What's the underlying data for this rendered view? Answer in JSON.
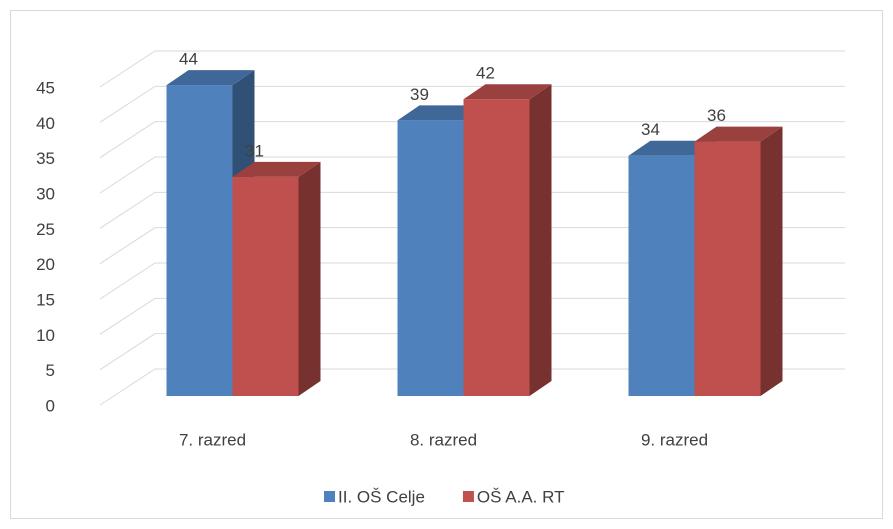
{
  "chart_data": {
    "type": "bar3d",
    "categories": [
      "7. razred",
      "8. razred",
      "9. razred"
    ],
    "series": [
      {
        "name": "II. OŠ Celje",
        "color": "#4f81bd",
        "values": [
          44,
          39,
          34
        ]
      },
      {
        "name": "OŠ A.A. RT",
        "color": "#c0504d",
        "values": [
          31,
          42,
          36
        ]
      }
    ],
    "ylim": [
      0,
      45
    ],
    "yticks": [
      0,
      5,
      10,
      15,
      20,
      25,
      30,
      35,
      40,
      45
    ],
    "grid": true,
    "legend": "bottom"
  }
}
